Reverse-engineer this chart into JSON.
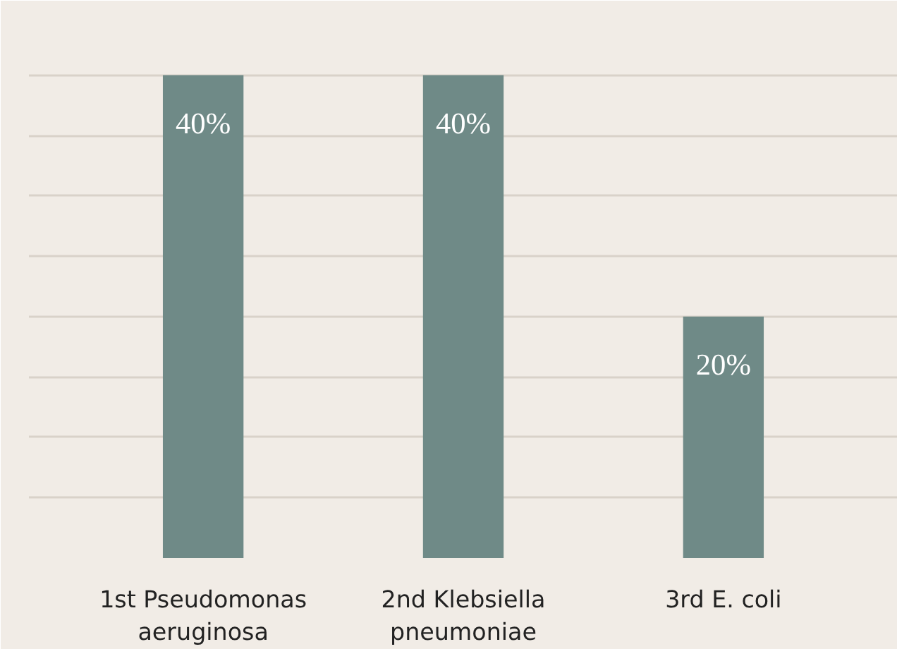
{
  "chart_data": {
    "type": "bar",
    "categories": [
      "1st Pseudomonas aeruginosa",
      "2nd Klebsiella pneumoniae",
      "3rd E. coli"
    ],
    "values": [
      40,
      40,
      20
    ],
    "value_labels": [
      "40%",
      "40%",
      "20%"
    ],
    "color": "#6f8a87",
    "ylim": [
      0,
      45
    ],
    "yticks": [
      {
        "value": 0,
        "label": null
      },
      {
        "value": 5,
        "label": null
      },
      {
        "value": 10,
        "label": null
      },
      {
        "value": 15,
        "label": null
      },
      {
        "value": 20,
        "label": null
      },
      {
        "value": 25,
        "label": null
      },
      {
        "value": 30,
        "label": null
      },
      {
        "value": 35,
        "label": null
      },
      {
        "value": 40,
        "label": null
      },
      {
        "value": 45,
        "label": null
      }
    ],
    "grid": "y",
    "tick_labels": "x"
  }
}
